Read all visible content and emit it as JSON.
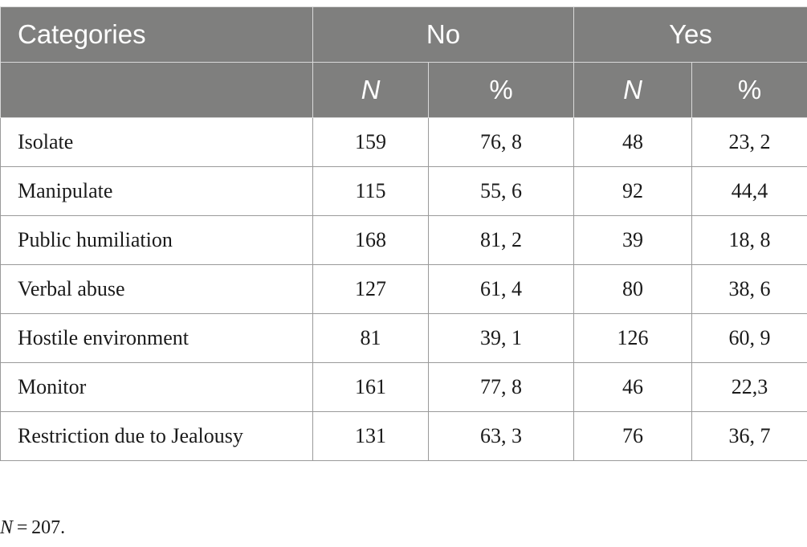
{
  "table": {
    "header": {
      "categories": "Categories",
      "group_no": "No",
      "group_yes": "Yes",
      "sub_n": "N",
      "sub_pct": "%"
    },
    "rows": [
      {
        "label": "Isolate",
        "no_n": "159",
        "no_pct": "76, 8",
        "yes_n": "48",
        "yes_pct": "23, 2"
      },
      {
        "label": "Manipulate",
        "no_n": "115",
        "no_pct": "55, 6",
        "yes_n": "92",
        "yes_pct": "44,4"
      },
      {
        "label": "Public humiliation",
        "no_n": "168",
        "no_pct": "81, 2",
        "yes_n": "39",
        "yes_pct": "18, 8"
      },
      {
        "label": "Verbal abuse",
        "no_n": "127",
        "no_pct": "61, 4",
        "yes_n": "80",
        "yes_pct": "38, 6"
      },
      {
        "label": "Hostile environment",
        "no_n": "81",
        "no_pct": "39, 1",
        "yes_n": "126",
        "yes_pct": "60, 9"
      },
      {
        "label": "Monitor",
        "no_n": "161",
        "no_pct": "77, 8",
        "yes_n": "46",
        "yes_pct": "22,3"
      },
      {
        "label": "Restriction due to Jealousy",
        "no_n": "131",
        "no_pct": "63, 3",
        "yes_n": "76",
        "yes_pct": "36, 7"
      }
    ]
  },
  "footnote": {
    "var": "N",
    "text": " = 207."
  }
}
